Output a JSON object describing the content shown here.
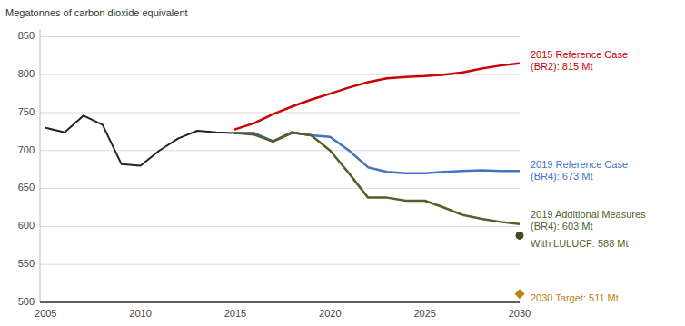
{
  "chart_data": {
    "type": "line",
    "y_label": "Megatonnes of carbon dioxide equivalent",
    "xlim": [
      2004.7,
      2030
    ],
    "ylim": [
      500,
      860
    ],
    "xticks": [
      2005,
      2010,
      2015,
      2020,
      2025,
      2030
    ],
    "yticks": [
      500,
      550,
      600,
      650,
      700,
      750,
      800,
      850
    ],
    "grid": true,
    "series": [
      {
        "type": "line",
        "color": "#222222",
        "x": [
          2005,
          2006,
          2007,
          2008,
          2009,
          2010,
          2011,
          2012,
          2013,
          2014,
          2015,
          2016,
          2017,
          2018,
          2019
        ],
        "values": [
          730,
          724,
          746,
          734,
          682,
          680,
          700,
          716,
          726,
          724,
          723,
          723,
          712,
          723,
          720
        ]
      },
      {
        "type": "line",
        "color": "#cc0000",
        "x": [
          2015,
          2016,
          2017,
          2018,
          2019,
          2020,
          2021,
          2022,
          2023,
          2024,
          2025,
          2026,
          2027,
          2028,
          2029,
          2030
        ],
        "values": [
          728,
          736,
          748,
          758,
          767,
          775,
          783,
          790,
          795,
          797,
          798,
          800,
          803,
          808,
          812,
          815
        ]
      },
      {
        "type": "line",
        "color": "#4472c4",
        "x": [
          2015,
          2016,
          2017,
          2018,
          2019,
          2020,
          2021,
          2022,
          2023,
          2024,
          2025,
          2026,
          2027,
          2028,
          2029,
          2030
        ],
        "values": [
          723,
          723,
          712,
          724,
          720,
          718,
          700,
          678,
          672,
          670,
          670,
          672,
          673,
          674,
          673,
          673
        ]
      },
      {
        "type": "line",
        "color": "#4f6228",
        "x": [
          2015,
          2016,
          2017,
          2018,
          2019,
          2020,
          2021,
          2022,
          2023,
          2024,
          2025,
          2026,
          2027,
          2028,
          2029,
          2030
        ],
        "values": [
          723,
          721,
          712,
          724,
          720,
          700,
          670,
          638,
          638,
          634,
          634,
          625,
          615,
          610,
          606,
          603
        ]
      },
      {
        "type": "scatter",
        "marker": "circle",
        "color": "#3d4f1e",
        "x": [
          2030
        ],
        "values": [
          588
        ]
      },
      {
        "type": "scatter",
        "marker": "diamond",
        "color": "#b8860b",
        "x": [
          2030
        ],
        "values": [
          511
        ]
      }
    ],
    "annotations": [
      {
        "text": "2015 Reference Case\n(BR2): 815 Mt",
        "color": "#cc0000",
        "y": 818
      },
      {
        "text": "2019 Reference Case\n(BR4): 673 Mt",
        "color": "#4472c4",
        "y": 673
      },
      {
        "text": "2019 Additional Measures\n(BR4): 603 Mt",
        "color": "#4f6228",
        "y": 607
      },
      {
        "text": "With LULUCF: 588 Mt",
        "color": "#4f6228",
        "y": 577
      },
      {
        "text": "2030 Target: 511 Mt",
        "color": "#b8860b",
        "y": 505
      }
    ]
  }
}
